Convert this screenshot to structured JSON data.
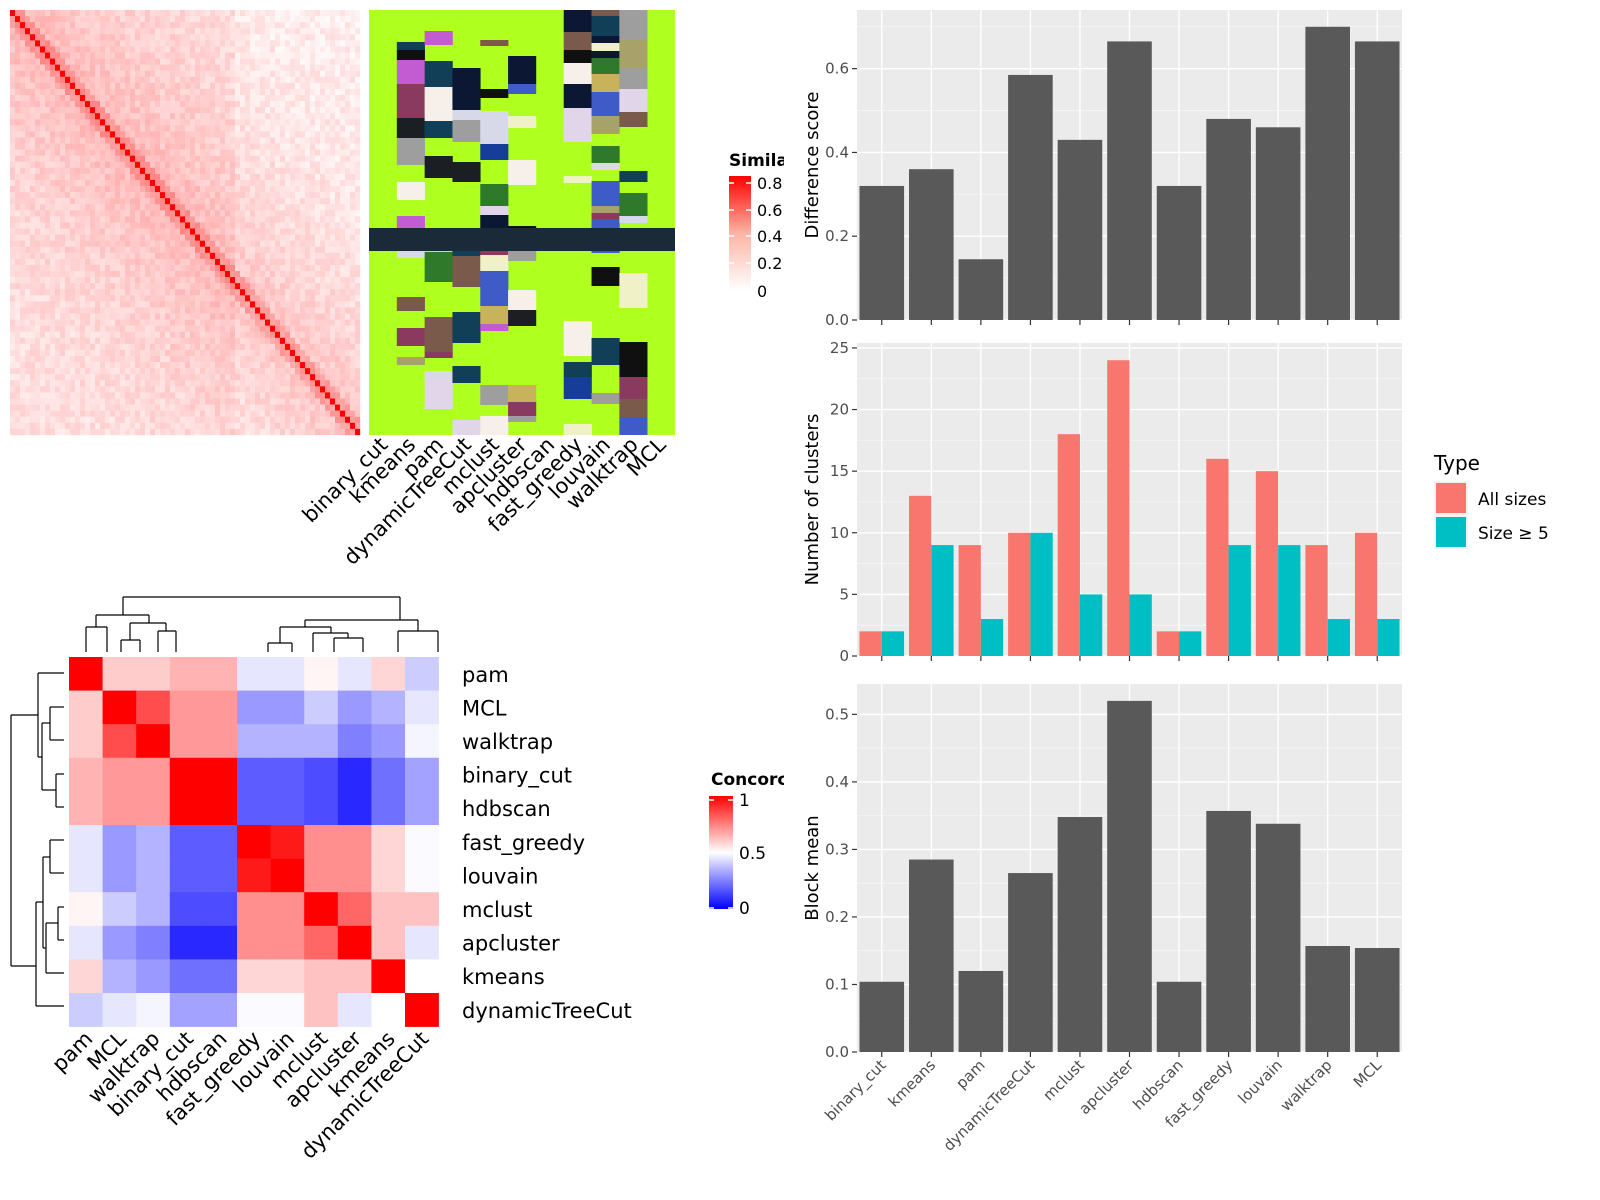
{
  "chart_data": [
    {
      "type": "heatmap",
      "title": "",
      "legend": {
        "title": "Similarity",
        "shown_title": "Simila",
        "ticks": [
          "0.8",
          "0.6",
          "0.4",
          "0.2",
          "0"
        ]
      },
      "methods": [
        "binary_cut",
        "kmeans",
        "pam",
        "dynamicTreeCut",
        "mclust",
        "apcluster",
        "hdbscan",
        "fast_greedy",
        "louvain",
        "walktrap",
        "MCL"
      ],
      "note": "term similarity matrix with per-method cluster assignment columns"
    },
    {
      "type": "bar",
      "categories": [
        "binary_cut",
        "kmeans",
        "pam",
        "dynamicTreeCut",
        "mclust",
        "apcluster",
        "hdbscan",
        "fast_greedy",
        "louvain",
        "walktrap",
        "MCL"
      ],
      "values": [
        0.32,
        0.36,
        0.145,
        0.585,
        0.43,
        0.665,
        0.32,
        0.48,
        0.46,
        0.7,
        0.665
      ],
      "ylabel": "Difference score",
      "yticks": [
        "0.0",
        "0.2",
        "0.4",
        "0.6"
      ],
      "ylim": [
        0,
        0.74
      ],
      "color": "#595959"
    },
    {
      "type": "bar",
      "categories": [
        "binary_cut",
        "kmeans",
        "pam",
        "dynamicTreeCut",
        "mclust",
        "apcluster",
        "hdbscan",
        "fast_greedy",
        "louvain",
        "walktrap",
        "MCL"
      ],
      "series": [
        {
          "name": "All sizes",
          "values": [
            2,
            13,
            9,
            10,
            18,
            24,
            2,
            16,
            15,
            9,
            10
          ],
          "color": "#F8766D"
        },
        {
          "name": "Size ≥ 5",
          "values": [
            2,
            9,
            3,
            10,
            5,
            5,
            2,
            9,
            9,
            3,
            3
          ],
          "color": "#00BFC4"
        }
      ],
      "ylabel": "Number of clusters",
      "yticks": [
        "0",
        "5",
        "10",
        "15",
        "20",
        "25"
      ],
      "ylim": [
        0,
        25.4
      ],
      "legend": {
        "title": "Type",
        "position": "right"
      }
    },
    {
      "type": "bar",
      "categories": [
        "binary_cut",
        "kmeans",
        "pam",
        "dynamicTreeCut",
        "mclust",
        "apcluster",
        "hdbscan",
        "fast_greedy",
        "louvain",
        "walktrap",
        "MCL"
      ],
      "values": [
        0.104,
        0.285,
        0.12,
        0.265,
        0.348,
        0.52,
        0.104,
        0.357,
        0.338,
        0.157,
        0.154
      ],
      "ylabel": "Block mean",
      "yticks": [
        "0.0",
        "0.1",
        "0.2",
        "0.3",
        "0.4",
        "0.5"
      ],
      "ylim": [
        0,
        0.545
      ],
      "color": "#595959"
    },
    {
      "type": "heatmap",
      "rows": [
        "pam",
        "MCL",
        "walktrap",
        "binary_cut",
        "hdbscan",
        "fast_greedy",
        "louvain",
        "mclust",
        "apcluster",
        "kmeans",
        "dynamicTreeCut"
      ],
      "values": [
        [
          1.0,
          0.6,
          0.6,
          0.65,
          0.65,
          0.45,
          0.45,
          0.52,
          0.45,
          0.58,
          0.4
        ],
        [
          0.6,
          1.0,
          0.85,
          0.7,
          0.7,
          0.3,
          0.3,
          0.4,
          0.3,
          0.35,
          0.45
        ],
        [
          0.6,
          0.85,
          1.0,
          0.7,
          0.7,
          0.35,
          0.35,
          0.35,
          0.25,
          0.3,
          0.48
        ],
        [
          0.65,
          0.7,
          0.7,
          1.0,
          1.0,
          0.18,
          0.18,
          0.15,
          0.08,
          0.22,
          0.32
        ],
        [
          0.65,
          0.7,
          0.7,
          1.0,
          1.0,
          0.18,
          0.18,
          0.15,
          0.08,
          0.22,
          0.32
        ],
        [
          0.45,
          0.3,
          0.35,
          0.18,
          0.18,
          1.0,
          0.95,
          0.72,
          0.72,
          0.58,
          0.49
        ],
        [
          0.45,
          0.3,
          0.35,
          0.18,
          0.18,
          0.95,
          1.0,
          0.72,
          0.72,
          0.58,
          0.49
        ],
        [
          0.52,
          0.4,
          0.35,
          0.15,
          0.15,
          0.72,
          0.72,
          1.0,
          0.8,
          0.62,
          0.62
        ],
        [
          0.45,
          0.3,
          0.25,
          0.08,
          0.08,
          0.72,
          0.72,
          0.8,
          1.0,
          0.62,
          0.45
        ],
        [
          0.58,
          0.35,
          0.3,
          0.22,
          0.22,
          0.58,
          0.58,
          0.62,
          0.62,
          1.0,
          0.5
        ],
        [
          0.4,
          0.45,
          0.48,
          0.32,
          0.32,
          0.49,
          0.49,
          0.62,
          0.45,
          0.5,
          1.0
        ]
      ],
      "legend": {
        "title": "Concordance",
        "shown_title": "Concorc",
        "ticks": [
          "1",
          "0.5",
          "0"
        ]
      }
    }
  ]
}
